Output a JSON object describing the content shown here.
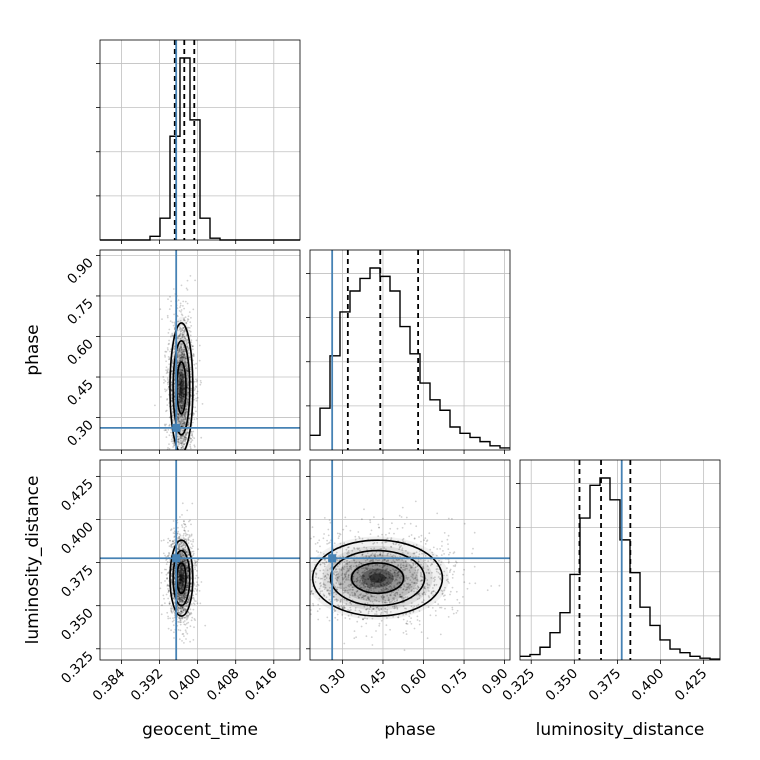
{
  "chart_data": {
    "type": "corner",
    "parameters": [
      "geocent_time",
      "phase",
      "luminosity_distance"
    ],
    "injection": {
      "geocent_time": 0.3955,
      "phase": 0.262,
      "luminosity_distance": 0.3775
    },
    "axes": {
      "geocent_time": {
        "range": [
          0.3795,
          0.4215
        ],
        "ticks": [
          0.384,
          0.392,
          0.4,
          0.408,
          0.416
        ],
        "tick_labels": [
          "0.384",
          "0.392",
          "0.400",
          "0.408",
          "0.416"
        ]
      },
      "phase": {
        "range": [
          0.18,
          0.92
        ],
        "ticks": [
          0.3,
          0.45,
          0.6,
          0.75,
          0.9
        ],
        "tick_labels": [
          "0.30",
          "0.45",
          "0.60",
          "0.75",
          "0.90"
        ]
      },
      "luminosity_distance": {
        "range": [
          0.3185,
          0.4345
        ],
        "ticks": [
          0.325,
          0.35,
          0.375,
          0.4,
          0.425
        ],
        "tick_labels": [
          "0.325",
          "0.350",
          "0.375",
          "0.400",
          "0.425"
        ]
      }
    },
    "histograms": {
      "geocent_time": {
        "edges": [
          0.3795,
          0.3816,
          0.3837,
          0.3858,
          0.3879,
          0.39,
          0.3921,
          0.3942,
          0.3963,
          0.3984,
          0.4005,
          0.4026,
          0.4047,
          0.4068,
          0.4089,
          0.411,
          0.4131,
          0.4152,
          0.4173,
          0.4194,
          0.4215
        ],
        "counts": [
          0,
          0,
          0,
          0,
          0,
          0.02,
          0.12,
          0.57,
          1.0,
          0.66,
          0.12,
          0.01,
          0,
          0,
          0,
          0,
          0,
          0,
          0,
          0
        ],
        "quantiles": [
          0.3952,
          0.3972,
          0.3993
        ]
      },
      "phase": {
        "edges": [
          0.18,
          0.217,
          0.254,
          0.291,
          0.328,
          0.365,
          0.402,
          0.439,
          0.476,
          0.513,
          0.55,
          0.587,
          0.624,
          0.661,
          0.698,
          0.735,
          0.772,
          0.809,
          0.846,
          0.883,
          0.92
        ],
        "counts": [
          0.07,
          0.2,
          0.45,
          0.66,
          0.76,
          0.82,
          0.87,
          0.83,
          0.76,
          0.59,
          0.46,
          0.32,
          0.24,
          0.19,
          0.11,
          0.08,
          0.06,
          0.04,
          0.02,
          0.01
        ],
        "quantiles": [
          0.32,
          0.44,
          0.58
        ]
      },
      "luminosity_distance": {
        "edges": [
          0.3185,
          0.3243,
          0.3301,
          0.3359,
          0.3417,
          0.3475,
          0.3533,
          0.3591,
          0.3649,
          0.3707,
          0.3765,
          0.3823,
          0.3881,
          0.3939,
          0.3997,
          0.4055,
          0.4113,
          0.4171,
          0.4229,
          0.4287,
          0.4345
        ],
        "counts": [
          0.02,
          0.03,
          0.07,
          0.15,
          0.26,
          0.47,
          0.78,
          0.96,
          1.0,
          0.88,
          0.66,
          0.48,
          0.29,
          0.19,
          0.11,
          0.06,
          0.04,
          0.02,
          0.01,
          0.005
        ],
        "quantiles": [
          0.353,
          0.3655,
          0.3825
        ]
      }
    },
    "joint_2d": [
      {
        "x": "geocent_time",
        "y": "phase",
        "mode": [
          0.3966,
          0.41
        ]
      },
      {
        "x": "geocent_time",
        "y": "luminosity_distance",
        "mode": [
          0.3966,
          0.366
        ]
      },
      {
        "x": "phase",
        "y": "luminosity_distance",
        "mode": [
          0.43,
          0.366
        ]
      }
    ],
    "colors": {
      "injection": "#4682b4",
      "hist": "#000000",
      "quantile": "#000000",
      "grid": "#c0c0c0"
    }
  }
}
